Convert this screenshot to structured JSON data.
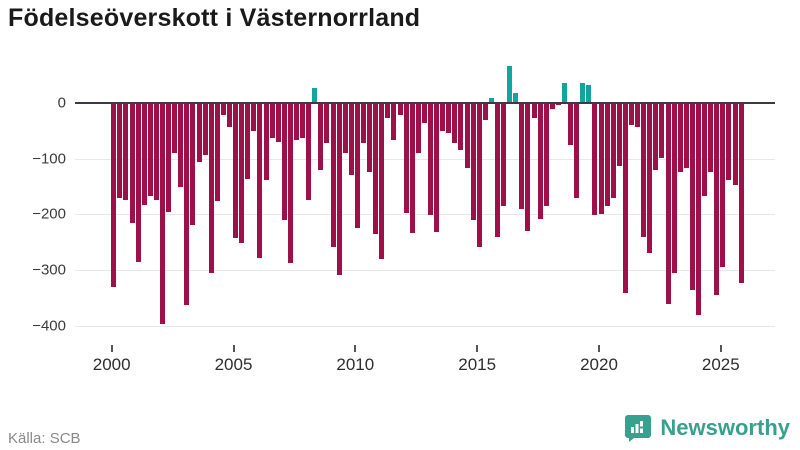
{
  "title": "Födelseöverskott i Västernorrland",
  "source_label": "Källa: SCB",
  "brand": {
    "name": "Newsworthy",
    "color": "#37a08e",
    "icon": "newsworthy-speech-bubble-bar-chart-icon"
  },
  "colors": {
    "negative_bar": "#9e104a",
    "positive_bar": "#14a4a0",
    "zero_line": "#3a3a42",
    "gridline": "#e8e8e8",
    "axis_text": "#3c3c3c"
  },
  "chart_data": {
    "type": "bar",
    "title": "Födelseöverskott i Västernorrland",
    "xlabel": "",
    "ylabel": "",
    "frequency": "quarterly",
    "start_year": 2000,
    "end_year": 2025,
    "ylim": [
      -430,
      80
    ],
    "grid": "horizontal",
    "legend": "none",
    "yticks": [
      0,
      -100,
      -200,
      -300,
      -400
    ],
    "ytick_labels": [
      "0",
      "−100",
      "−200",
      "−300",
      "−400"
    ],
    "xticks": [
      2000,
      2005,
      2010,
      2015,
      2020,
      2025
    ],
    "xtick_labels": [
      "2000",
      "2005",
      "2010",
      "2015",
      "2020",
      "2025"
    ],
    "values": [
      -330,
      -170,
      -174,
      -215,
      -285,
      -183,
      -167,
      -174,
      -397,
      -196,
      -91,
      -152,
      -362,
      -219,
      -106,
      -93,
      -306,
      -177,
      -23,
      -43,
      -243,
      -252,
      -137,
      -51,
      -279,
      -139,
      -64,
      -70,
      -210,
      -288,
      -67,
      -64,
      -174,
      26,
      -121,
      -73,
      -258,
      -309,
      -91,
      -130,
      -225,
      -73,
      -125,
      -235,
      -280,
      -28,
      -67,
      -22,
      -198,
      -234,
      -91,
      -37,
      -201,
      -231,
      -50,
      -54,
      -72,
      -85,
      -118,
      -210,
      -258,
      -31,
      8,
      -240,
      -186,
      66,
      17,
      -190,
      -230,
      -28,
      -209,
      -186,
      -12,
      -4,
      35,
      -76,
      -171,
      36,
      32,
      -202,
      -200,
      -186,
      -170,
      -113,
      -342,
      -40,
      -43,
      -240,
      -270,
      -121,
      -100,
      -360,
      -305,
      -124,
      -118,
      -336,
      -380,
      -168,
      -124,
      -344,
      -294,
      -139,
      -147,
      -324
    ]
  }
}
